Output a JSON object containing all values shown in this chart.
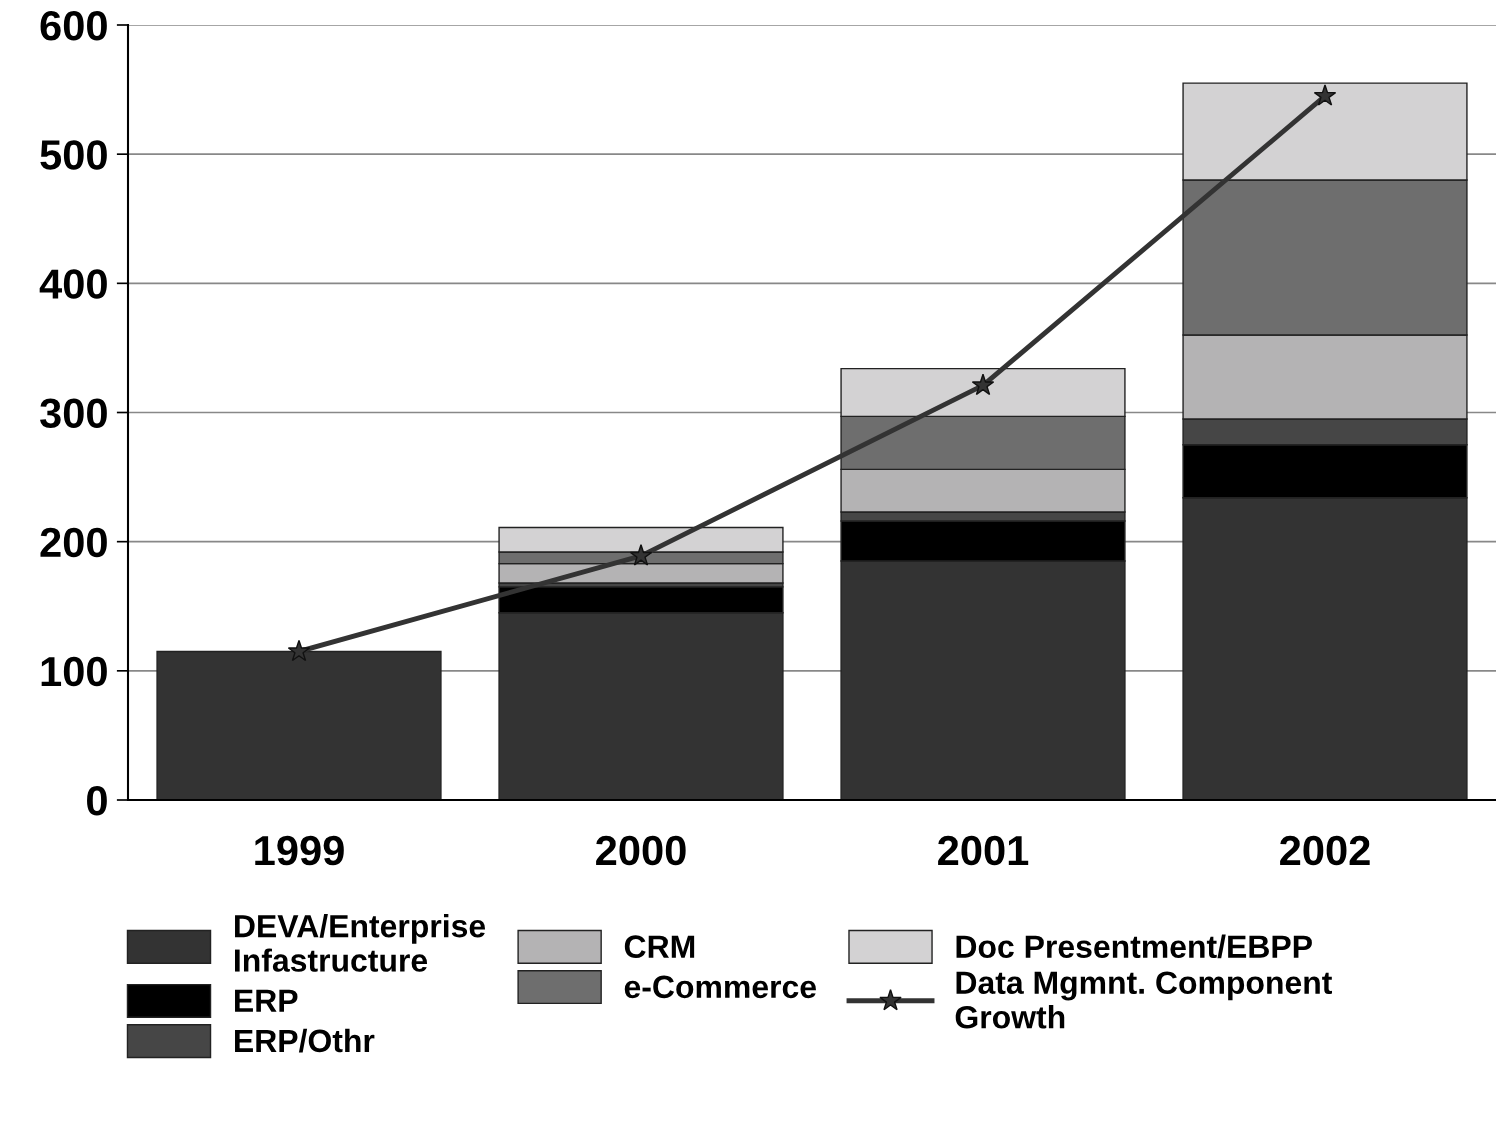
{
  "chart_data": {
    "type": "bar",
    "stacked": true,
    "categories": [
      "1999",
      "2000",
      "2001",
      "2002"
    ],
    "series": [
      {
        "name": "DEVA/Enterprise\nInfastructure",
        "color": "#333333",
        "values": [
          115,
          145,
          185,
          234
        ]
      },
      {
        "name": "ERP",
        "color": "#000000",
        "values": [
          null,
          20,
          31,
          41
        ]
      },
      {
        "name": "ERP/Othr",
        "color": "#464646",
        "values": [
          null,
          3,
          7,
          20
        ]
      },
      {
        "name": "CRM",
        "color": "#b4b3b4",
        "values": [
          null,
          15,
          33,
          65
        ]
      },
      {
        "name": "e-Commerce",
        "color": "#6e6e6e",
        "values": [
          null,
          9,
          41,
          120
        ]
      },
      {
        "name": "Doc Presentment/EBPP",
        "color": "#d3d2d3",
        "values": [
          null,
          19,
          37,
          75
        ]
      },
      {
        "name": "Data Mgmnt. Component\nGrowth",
        "type": "line",
        "color": "#333333",
        "marker": "star",
        "line_style": "solid",
        "values": [
          115,
          189,
          321,
          545
        ]
      }
    ],
    "ylim": [
      0,
      600
    ],
    "yticks": [
      0,
      100,
      200,
      300,
      400,
      500,
      600
    ],
    "grid": "y",
    "legend": "bottom"
  }
}
